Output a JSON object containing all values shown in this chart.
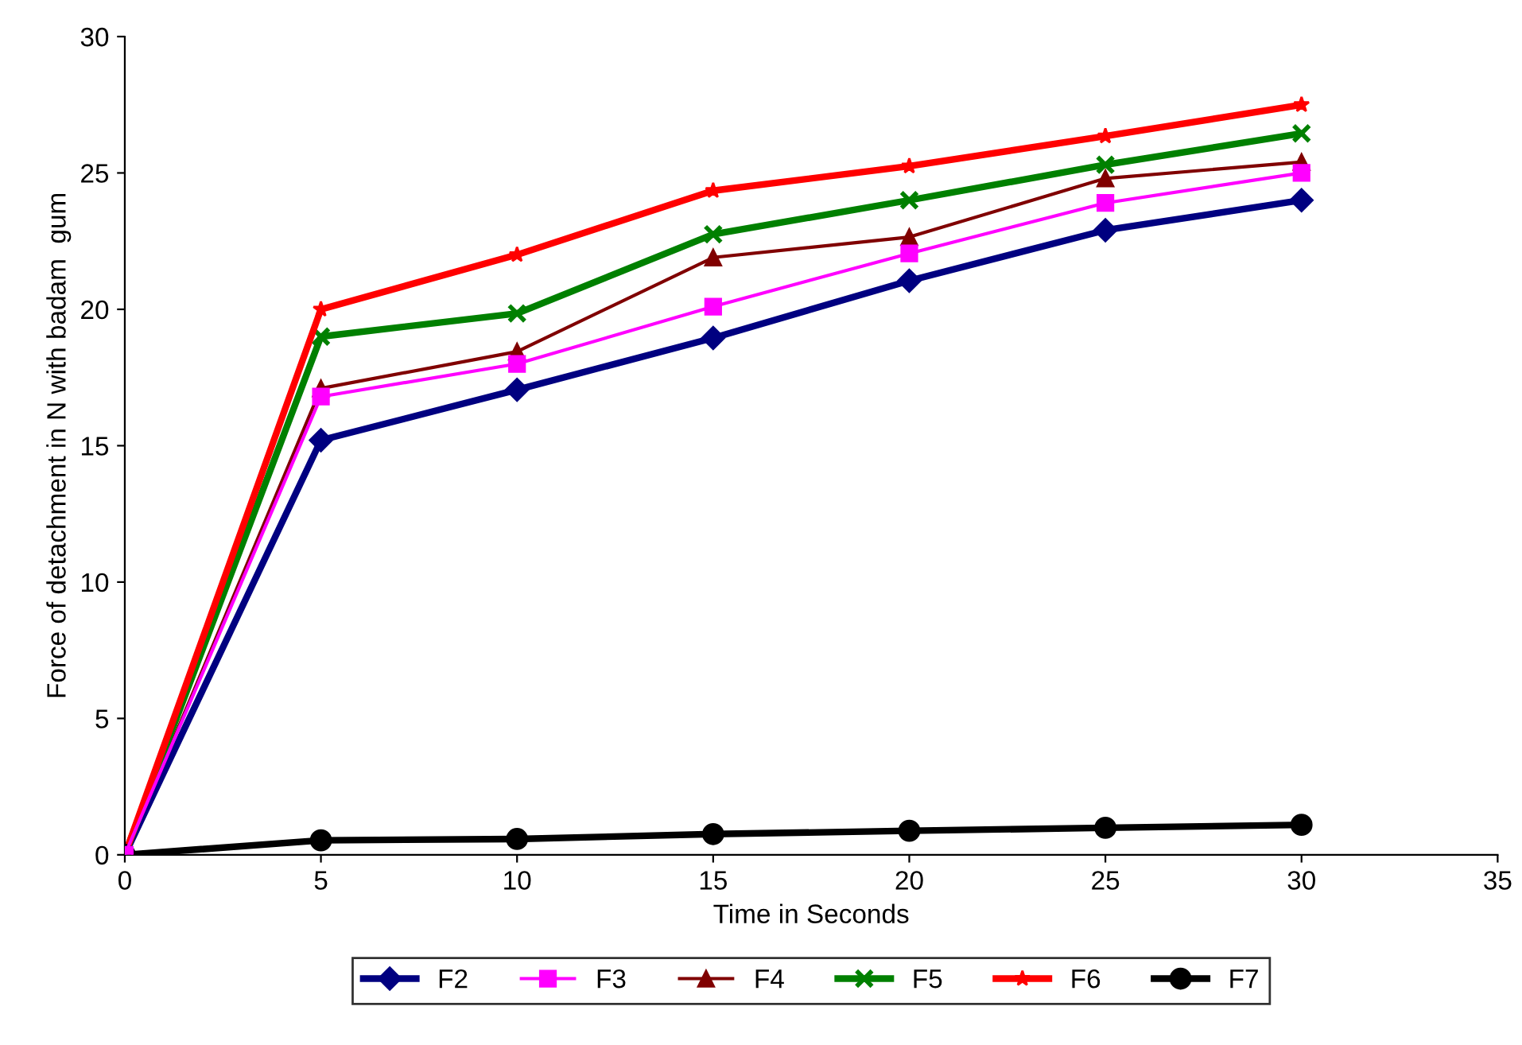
{
  "chart_data": {
    "type": "line",
    "xlabel": "Time in Seconds",
    "ylabel": "Force of detachment in N with badam  gum",
    "x": [
      0,
      5,
      10,
      15,
      20,
      25,
      30
    ],
    "series": [
      {
        "name": "F2",
        "color": "#000080",
        "marker": "diamond",
        "values": [
          0,
          15.2,
          17.05,
          18.95,
          21.05,
          22.9,
          24.0
        ]
      },
      {
        "name": "F3",
        "color": "#ff00ff",
        "marker": "square",
        "values": [
          0,
          16.8,
          18.0,
          20.1,
          22.05,
          23.9,
          25.0
        ]
      },
      {
        "name": "F4",
        "color": "#800000",
        "marker": "triangle",
        "values": [
          0,
          17.1,
          18.45,
          21.9,
          22.65,
          24.8,
          25.4
        ]
      },
      {
        "name": "F5",
        "color": "#008000",
        "marker": "cross",
        "values": [
          0,
          19.0,
          19.85,
          22.75,
          24.0,
          25.3,
          26.45
        ]
      },
      {
        "name": "F6",
        "color": "#ff0000",
        "marker": "star",
        "values": [
          0,
          20.0,
          22.0,
          24.35,
          25.25,
          26.35,
          27.5
        ]
      },
      {
        "name": "F7",
        "color": "#000000",
        "marker": "circle",
        "values": [
          0,
          0.53,
          0.58,
          0.76,
          0.88,
          0.99,
          1.1
        ]
      }
    ],
    "xlim": [
      0,
      35
    ],
    "xticks": [
      0,
      5,
      10,
      15,
      20,
      25,
      30,
      35
    ],
    "ylim": [
      0,
      30
    ],
    "yticks": [
      0,
      5,
      10,
      15,
      20,
      25,
      30
    ],
    "grid": false,
    "legend": "bottom",
    "line_style": "solid"
  }
}
